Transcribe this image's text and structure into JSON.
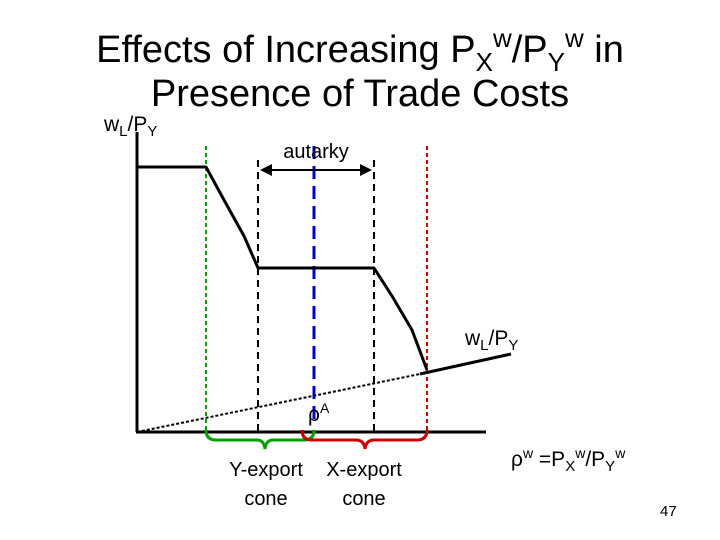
{
  "title": {
    "line1_lead": "Effects of Increasing P",
    "line1_sub1": "X",
    "line1_sup1": "w",
    "line1_slash": "/P",
    "line1_sub2": "Y",
    "line1_sup2": "w",
    "line1_tail": " in",
    "line2": "Presence of Trade Costs"
  },
  "y_axis_label": {
    "main": "w",
    "sub1": "L",
    "mid": "/P",
    "sub2": "Y"
  },
  "curve_label": {
    "main": "w",
    "sub1": "L",
    "mid": "/P",
    "sub2": "Y"
  },
  "autarky_label": "autarky",
  "rho_a_label": {
    "main": "ρ",
    "sup": "A"
  },
  "x_axis_label": {
    "lead": "ρ",
    "lead_sup": "w",
    "eq": " =P",
    "sub1": "X",
    "sup1": "w",
    "slash": "/P",
    "sub2": "Y",
    "sup2": "w"
  },
  "y_export_cone": {
    "line1": "Y-export",
    "line2": "cone"
  },
  "x_export_cone": {
    "line1": "X-export",
    "line2": "cone"
  },
  "page_number": "47",
  "colors": {
    "y_export": "#00a000",
    "x_export": "#cc0000",
    "autarky_price": "#0000cc",
    "axis": "#000000"
  }
}
